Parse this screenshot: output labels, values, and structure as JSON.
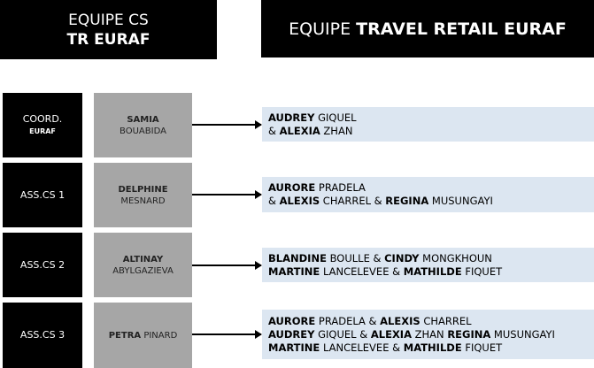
{
  "header_left": {
    "line1": "EQUIPE CS",
    "line2": "TR EURAF"
  },
  "header_right": {
    "prefix": "EQUIPE ",
    "bold": "TRAVEL RETAIL EURAF"
  },
  "rows": [
    {
      "role": "COORD.",
      "role_sub": "EURAF",
      "first": "SAMIA",
      "last": "BOUABIDA",
      "team": [
        [
          {
            "t": "AUDREY",
            "b": true
          },
          {
            "t": " GIQUEL"
          }
        ],
        [
          {
            "t": "& "
          },
          {
            "t": "ALEXIA",
            "b": true
          },
          {
            "t": " ZHAN"
          }
        ]
      ]
    },
    {
      "role": "ASS.CS 1",
      "first": "DELPHINE",
      "last": "MESNARD",
      "team": [
        [
          {
            "t": "AURORE",
            "b": true
          },
          {
            "t": " PRADELA"
          }
        ],
        [
          {
            "t": "& "
          },
          {
            "t": "ALEXIS",
            "b": true
          },
          {
            "t": " CHARREL & "
          },
          {
            "t": "REGINA",
            "b": true
          },
          {
            "t": " MUSUNGAYI"
          }
        ]
      ]
    },
    {
      "role": "ASS.CS 2",
      "first": "ALTINAY",
      "last": "ABYLGAZIEVA",
      "team": [
        [
          {
            "t": "BLANDINE",
            "b": true
          },
          {
            "t": " BOULLE & "
          },
          {
            "t": "CINDY",
            "b": true
          },
          {
            "t": " MONGKHOUN"
          }
        ],
        [
          {
            "t": "MARTINE",
            "b": true
          },
          {
            "t": " LANCELEVEE & "
          },
          {
            "t": "MATHILDE",
            "b": true
          },
          {
            "t": " FIQUET"
          }
        ]
      ]
    },
    {
      "role": "ASS.CS 3",
      "first": "PETRA",
      "last": "PINARD",
      "inline": true,
      "team": [
        [
          {
            "t": "AURORE",
            "b": true
          },
          {
            "t": " PRADELA & "
          },
          {
            "t": "ALEXIS",
            "b": true
          },
          {
            "t": " CHARREL"
          }
        ],
        [
          {
            "t": "AUDREY",
            "b": true
          },
          {
            "t": " GIQUEL & "
          },
          {
            "t": "ALEXIA",
            "b": true
          },
          {
            "t": " ZHAN "
          },
          {
            "t": "REGINA",
            "b": true
          },
          {
            "t": " MUSUNGAYI"
          }
        ],
        [
          {
            "t": "MARTINE",
            "b": true
          },
          {
            "t": " LANCELEVEE & "
          },
          {
            "t": "MATHILDE",
            "b": true
          },
          {
            "t": " FIQUET"
          }
        ]
      ]
    }
  ]
}
